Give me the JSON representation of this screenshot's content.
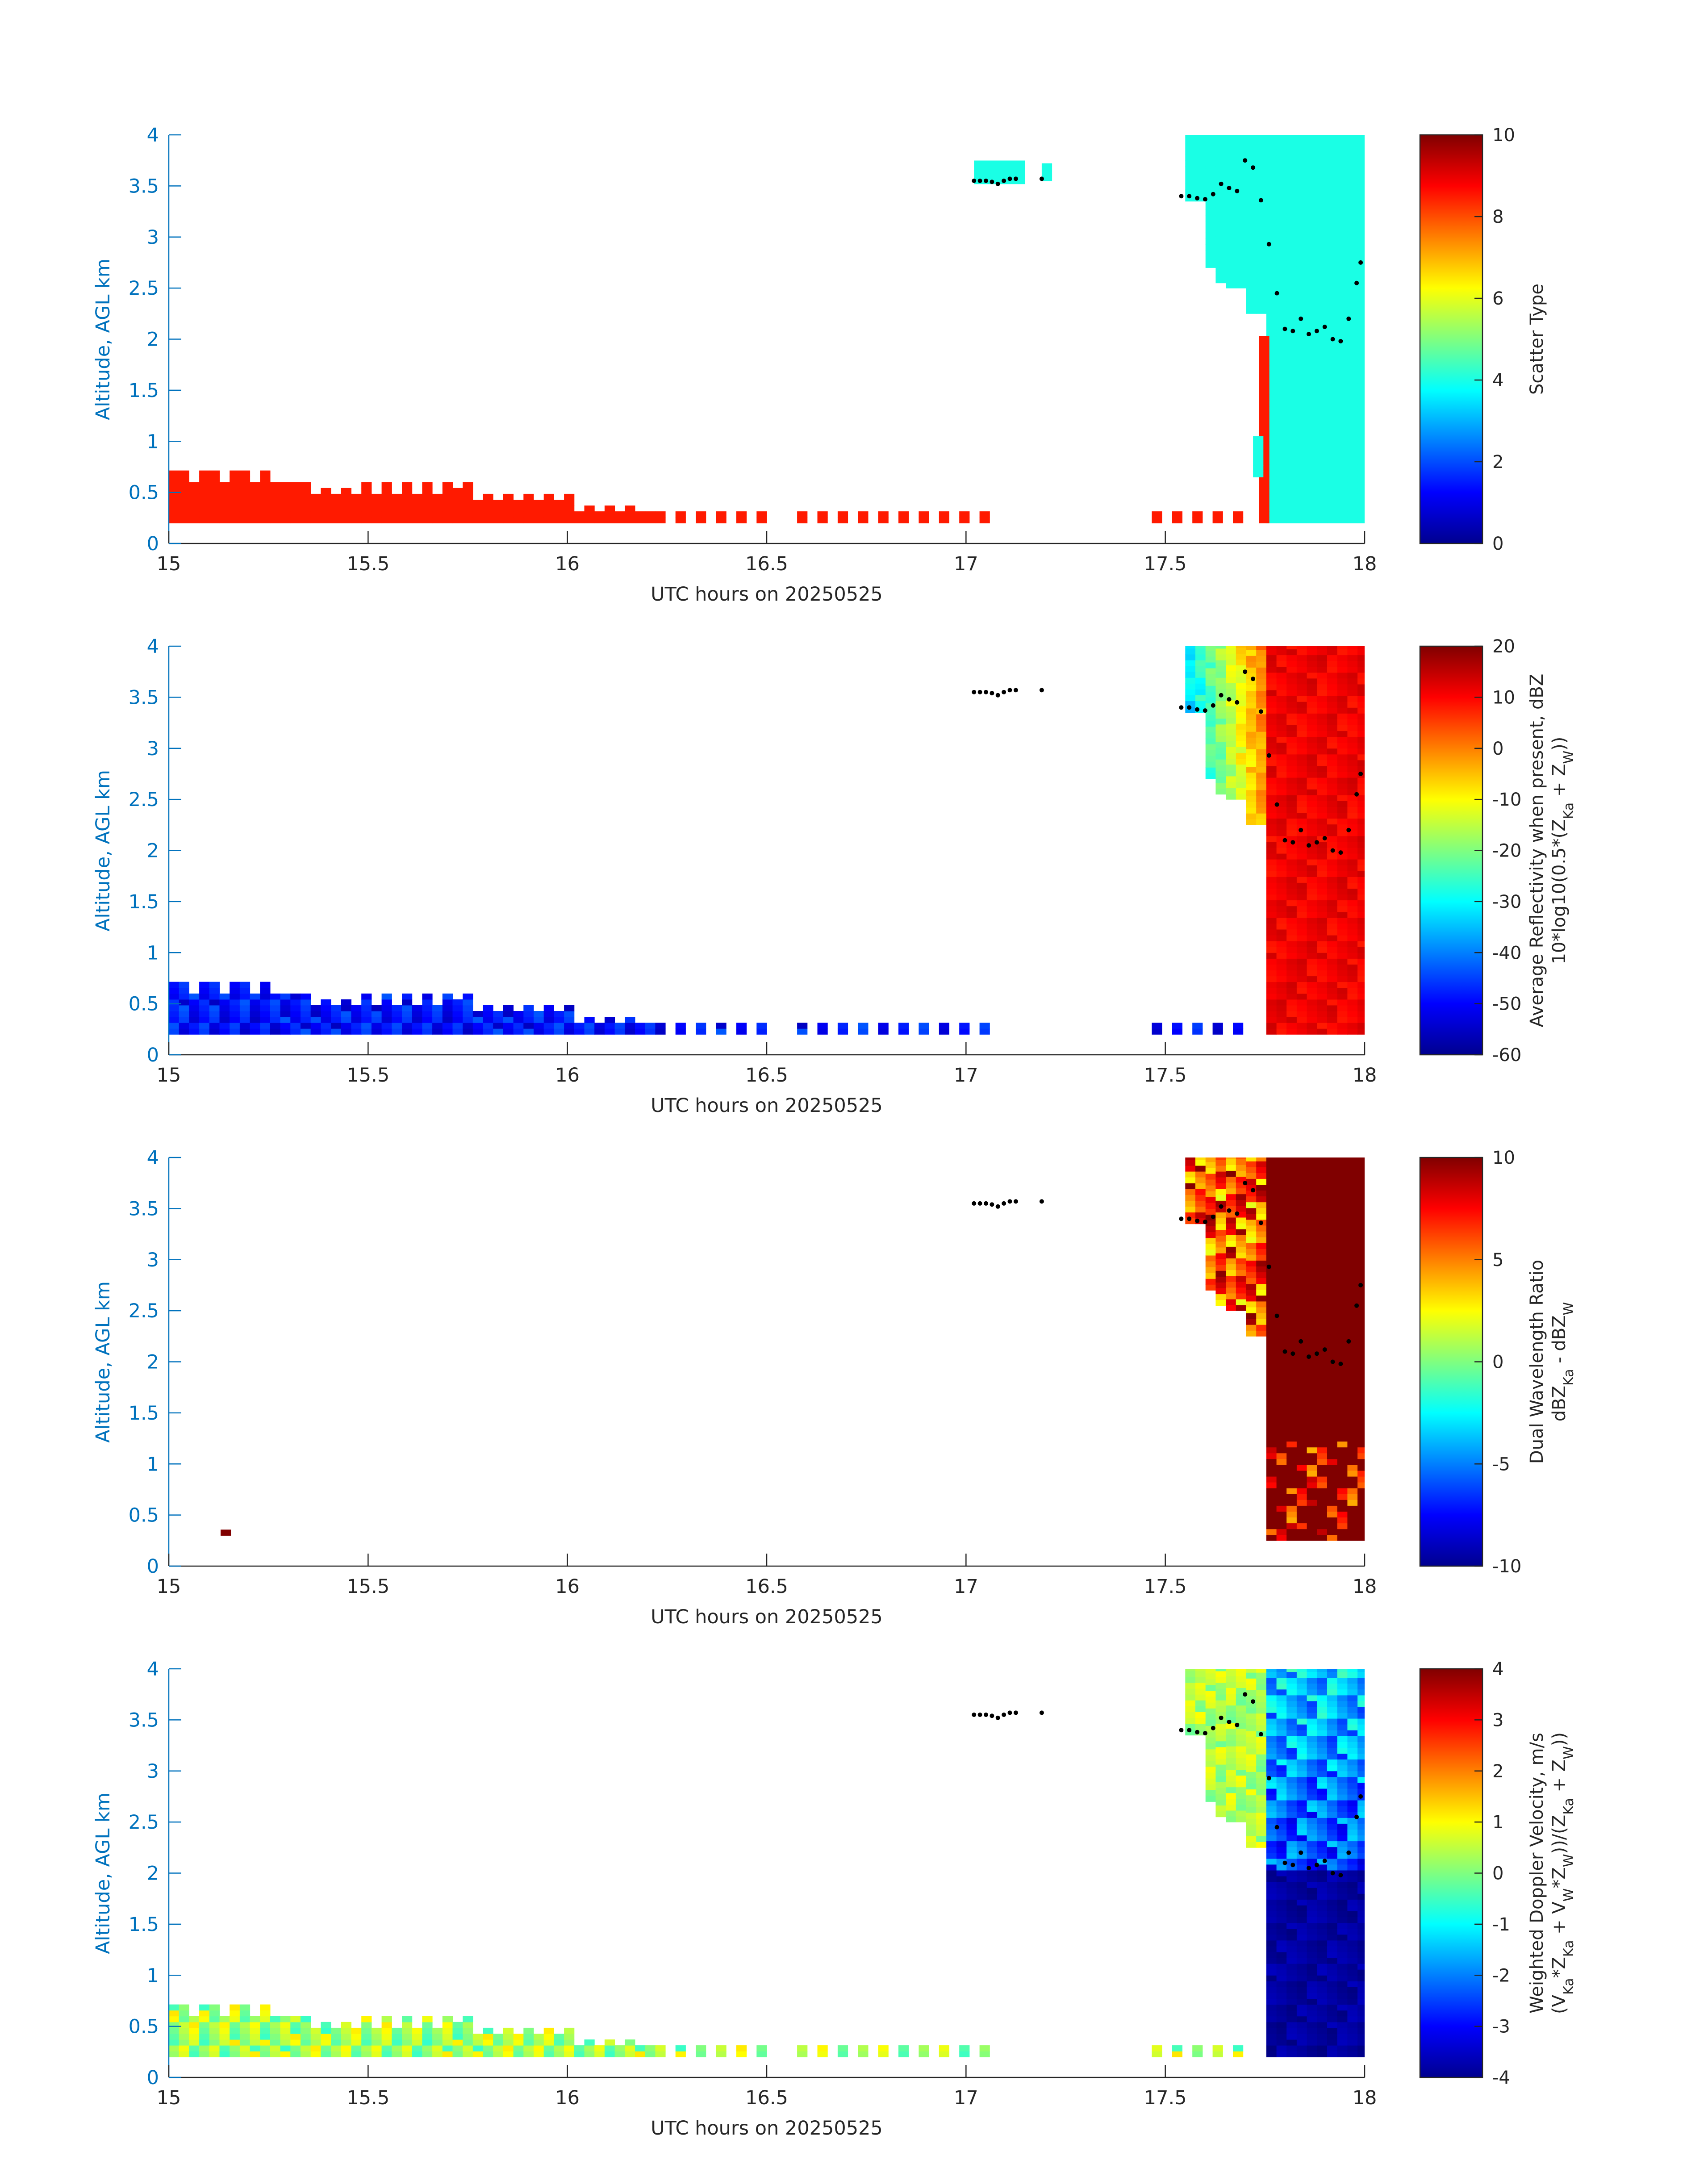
{
  "chart_data": [
    {
      "type": "heatmap",
      "xlabel": "UTC hours on 20250525",
      "ylabel": "Altitude, AGL km",
      "xlim": [
        15,
        18
      ],
      "ylim": [
        0,
        4
      ],
      "xticks": [
        "15",
        "15.5",
        "16",
        "16.5",
        "17",
        "17.5",
        "18"
      ],
      "yticks": [
        "0",
        "0.5",
        "1",
        "1.5",
        "2",
        "2.5",
        "3",
        "3.5",
        "4"
      ],
      "colorbar": {
        "label_lines": [
          "Scatter Type"
        ],
        "lim": [
          0,
          10
        ],
        "ticks": [
          "0",
          "2",
          "4",
          "6",
          "8",
          "10"
        ]
      },
      "regions": [
        {
          "desc": "near-surface type ~8.5 (orange)",
          "value": 8.5,
          "x": [
            15.0,
            17.67
          ],
          "y": [
            0.18,
            0.72
          ]
        },
        {
          "desc": "type ~4 (cyan) patch",
          "value": 4.0,
          "x": [
            17.02,
            17.19
          ],
          "y": [
            3.5,
            3.7
          ]
        },
        {
          "desc": "type ~4 (cyan) main cloud",
          "value": 4.0,
          "x": [
            17.55,
            18.0
          ],
          "y": [
            0.2,
            4.0
          ]
        },
        {
          "desc": "type ~8.5 (orange) column",
          "value": 8.5,
          "x": [
            17.73,
            17.75
          ],
          "y": [
            0.2,
            2.0
          ]
        }
      ]
    },
    {
      "type": "heatmap",
      "xlabel": "UTC hours on 20250525",
      "ylabel": "Altitude, AGL km",
      "xlim": [
        15,
        18
      ],
      "ylim": [
        0,
        4
      ],
      "xticks": [
        "15",
        "15.5",
        "16",
        "16.5",
        "17",
        "17.5",
        "18"
      ],
      "yticks": [
        "0",
        "0.5",
        "1",
        "1.5",
        "2",
        "2.5",
        "3",
        "3.5",
        "4"
      ],
      "colorbar": {
        "label_lines": [
          "Average Reflectivity when present, dBZ",
          "10*log10(0.5*(Z_Ka + Z_W))"
        ],
        "lim": [
          -60,
          20
        ],
        "ticks": [
          "-60",
          "-50",
          "-40",
          "-30",
          "-20",
          "-10",
          "0",
          "10",
          "20"
        ]
      },
      "regions": [
        {
          "desc": "near-surface echo",
          "value": -52,
          "x": [
            15.0,
            17.67
          ],
          "y": [
            0.18,
            0.72
          ]
        },
        {
          "desc": "cloud edge",
          "value": -25,
          "x": [
            17.55,
            17.75
          ],
          "y": [
            2.0,
            4.0
          ]
        },
        {
          "desc": "precipitation core",
          "value": 12,
          "x": [
            17.75,
            18.0
          ],
          "y": [
            0.2,
            4.0
          ]
        }
      ]
    },
    {
      "type": "heatmap",
      "xlabel": "UTC hours on 20250525",
      "ylabel": "Altitude, AGL km",
      "xlim": [
        15,
        18
      ],
      "ylim": [
        0,
        4
      ],
      "xticks": [
        "15",
        "15.5",
        "16",
        "16.5",
        "17",
        "17.5",
        "18"
      ],
      "yticks": [
        "0",
        "0.5",
        "1",
        "1.5",
        "2",
        "2.5",
        "3",
        "3.5",
        "4"
      ],
      "colorbar": {
        "label_lines": [
          "Dual Wavelength Ratio",
          "dBZ_Ka - dBZ_W"
        ],
        "lim": [
          -10,
          10
        ],
        "ticks": [
          "-10",
          "-5",
          "0",
          "5",
          "10"
        ]
      },
      "regions": [
        {
          "desc": "isolated pixel",
          "value": 10,
          "x": [
            15.13,
            15.15
          ],
          "y": [
            0.3,
            0.36
          ]
        },
        {
          "desc": "cloud edge",
          "value": 6,
          "x": [
            17.55,
            17.75
          ],
          "y": [
            2.2,
            4.0
          ]
        },
        {
          "desc": "high DWR core",
          "value": 10,
          "x": [
            17.75,
            18.0
          ],
          "y": [
            0.25,
            4.0
          ]
        }
      ]
    },
    {
      "type": "heatmap",
      "xlabel": "UTC hours on 20250525",
      "ylabel": "Altitude, AGL km",
      "xlim": [
        15,
        18
      ],
      "ylim": [
        0,
        4
      ],
      "xticks": [
        "15",
        "15.5",
        "16",
        "16.5",
        "17",
        "17.5",
        "18"
      ],
      "yticks": [
        "0",
        "0.5",
        "1",
        "1.5",
        "2",
        "2.5",
        "3",
        "3.5",
        "4"
      ],
      "colorbar": {
        "label_lines": [
          "Weighted Doppler Velocity, m/s",
          "(V_Ka*Z_Ka + V_W*Z_W))/(Z_Ka + Z_W))"
        ],
        "lim": [
          -4,
          4
        ],
        "ticks": [
          "-4",
          "-3",
          "-2",
          "-1",
          "0",
          "1",
          "2",
          "3",
          "4"
        ]
      },
      "regions": [
        {
          "desc": "near-surface echo",
          "value": 0.3,
          "x": [
            15.0,
            17.67
          ],
          "y": [
            0.18,
            0.72
          ]
        },
        {
          "desc": "cloud top",
          "value": -0.5,
          "x": [
            17.55,
            17.75
          ],
          "y": [
            2.2,
            4.0
          ]
        },
        {
          "desc": "falling precipitation",
          "value": -3.5,
          "x": [
            17.75,
            18.0
          ],
          "y": [
            0.2,
            2.0
          ]
        }
      ]
    }
  ],
  "cloud_top_markers": {
    "x": [
      17.02,
      17.035,
      17.05,
      17.065,
      17.08,
      17.095,
      17.11,
      17.125,
      17.19,
      17.54,
      17.56,
      17.58,
      17.6,
      17.62,
      17.64,
      17.66,
      17.68,
      17.7,
      17.72,
      17.74,
      17.76,
      17.78,
      17.8,
      17.82,
      17.84,
      17.86,
      17.88,
      17.9,
      17.92,
      17.94,
      17.96,
      17.98,
      17.99
    ],
    "y": [
      3.55,
      3.55,
      3.55,
      3.54,
      3.52,
      3.55,
      3.57,
      3.57,
      3.57,
      3.4,
      3.4,
      3.38,
      3.37,
      3.42,
      3.52,
      3.48,
      3.45,
      3.75,
      3.68,
      3.36,
      2.93,
      2.45,
      2.1,
      2.08,
      2.2,
      2.05,
      2.08,
      2.12,
      2.0,
      1.98,
      2.2,
      2.55,
      2.75
    ]
  }
}
